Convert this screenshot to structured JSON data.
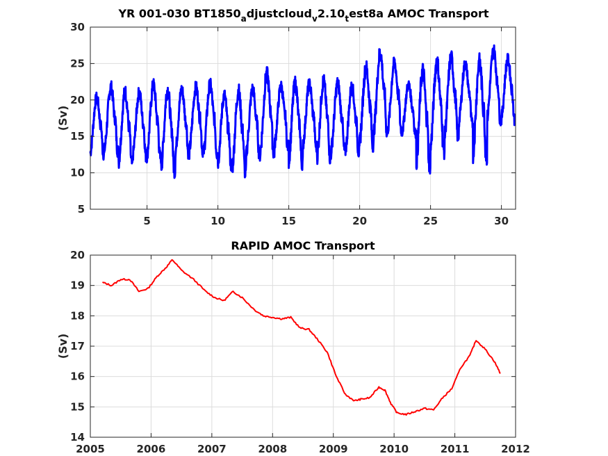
{
  "chart_data": [
    {
      "type": "line",
      "title_main": "YR 001-030 BT1850",
      "title_sub1": "a",
      "title_mid": "djustcloud",
      "title_sub2": "v",
      "title_mid2": "2.10",
      "title_sub3": "t",
      "title_end": "est8a AMOC Transport",
      "xlabel": "",
      "ylabel": "(Sv)",
      "xlim": [
        1,
        31
      ],
      "ylim": [
        5,
        30
      ],
      "xticks": [
        5,
        10,
        15,
        20,
        25,
        30
      ],
      "yticks": [
        5,
        10,
        15,
        20,
        25,
        30
      ],
      "grid": true,
      "series": [
        {
          "color": "#0000ff",
          "period": 1,
          "annual": {
            "years": [
              1,
              2,
              3,
              4,
              5,
              6,
              7,
              8,
              9,
              10,
              11,
              12,
              13,
              14,
              15,
              16,
              17,
              18,
              19,
              20,
              21,
              22,
              23,
              24,
              25,
              26,
              27,
              28,
              29,
              30
            ],
            "max": [
              21.0,
              22.6,
              22.0,
              21.8,
              22.9,
              22.4,
              22.2,
              22.5,
              22.9,
              21.5,
              22.2,
              22.3,
              24.5,
              22.6,
              23.2,
              22.9,
              23.5,
              23.1,
              22.6,
              25.4,
              27.5,
              25.9,
              22.7,
              25.1,
              26.4,
              26.8,
              25.7,
              26.4,
              27.6,
              26.3
            ],
            "min": [
              11.8,
              12.2,
              10.3,
              11.4,
              11.2,
              9.3,
              11.8,
              12.2,
              11.8,
              10.2,
              9.0,
              11.6,
              11.8,
              12.9,
              10.4,
              12.8,
              10.9,
              12.2,
              12.0,
              12.9,
              14.5,
              15.1,
              14.8,
              9.9,
              11.9,
              14.0,
              16.0,
              11.1,
              16.4,
              16.5
            ]
          }
        }
      ]
    },
    {
      "type": "line",
      "title": "RAPID AMOC Transport",
      "xlabel": "",
      "ylabel": "(Sv)",
      "xlim": [
        2005,
        2012
      ],
      "ylim": [
        14,
        20
      ],
      "xticks": [
        2005,
        2006,
        2007,
        2008,
        2009,
        2010,
        2011,
        2012
      ],
      "yticks": [
        14,
        15,
        16,
        17,
        18,
        19,
        20
      ],
      "grid": true,
      "series": [
        {
          "color": "#ff0000",
          "x": [
            2005.2,
            2005.35,
            2005.5,
            2005.65,
            2005.8,
            2005.95,
            2006.1,
            2006.25,
            2006.35,
            2006.5,
            2006.7,
            2006.9,
            2007.05,
            2007.2,
            2007.35,
            2007.5,
            2007.7,
            2007.85,
            2008.0,
            2008.15,
            2008.3,
            2008.45,
            2008.6,
            2008.75,
            2008.9,
            2009.05,
            2009.2,
            2009.35,
            2009.45,
            2009.6,
            2009.75,
            2009.85,
            2009.95,
            2010.05,
            2010.2,
            2010.35,
            2010.5,
            2010.65,
            2010.8,
            2010.95,
            2011.1,
            2011.25,
            2011.35,
            2011.5,
            2011.65,
            2011.75
          ],
          "values": [
            19.1,
            19.0,
            19.2,
            19.2,
            18.8,
            18.9,
            19.3,
            19.6,
            19.85,
            19.5,
            19.2,
            18.8,
            18.6,
            18.5,
            18.8,
            18.6,
            18.2,
            18.0,
            17.95,
            17.9,
            17.95,
            17.6,
            17.55,
            17.2,
            16.8,
            16.0,
            15.4,
            15.2,
            15.25,
            15.3,
            15.65,
            15.55,
            15.1,
            14.8,
            14.75,
            14.85,
            14.95,
            14.9,
            15.3,
            15.6,
            16.3,
            16.7,
            17.2,
            16.9,
            16.5,
            16.1
          ]
        }
      ]
    }
  ]
}
